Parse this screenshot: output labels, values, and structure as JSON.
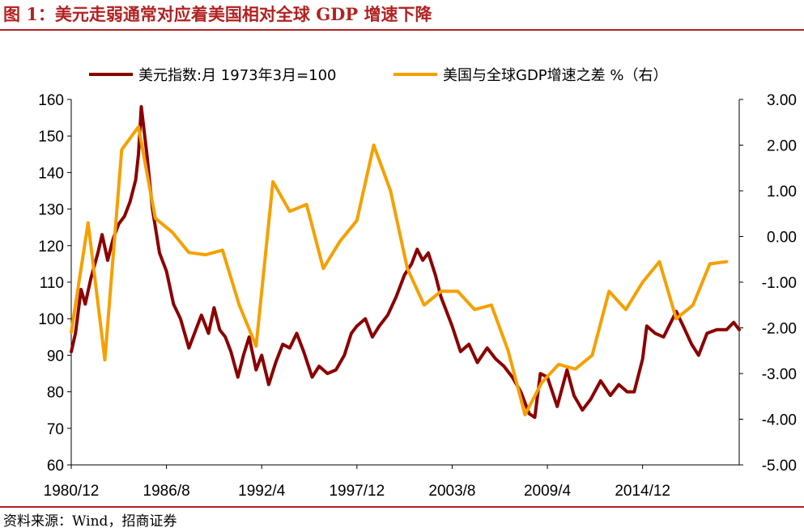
{
  "figure": {
    "title": "图 1：美元走弱通常对应着美国相对全球 GDP 增速下降",
    "source": "资料来源：Wind，招商证券"
  },
  "colors": {
    "accent": "#B22222",
    "dxy": "#8B0000",
    "gdp": "#F5A000"
  },
  "chart_data": {
    "type": "line",
    "legend_placement": "top",
    "grid": false,
    "x_tick_labels": [
      "1980/12",
      "1986/8",
      "1992/4",
      "1997/12",
      "2003/8",
      "2009/4",
      "2014/12"
    ],
    "y_left": {
      "range": [
        60,
        160
      ],
      "ticks": [
        "60",
        "70",
        "80",
        "90",
        "100",
        "110",
        "120",
        "130",
        "140",
        "150",
        "160"
      ]
    },
    "y_right": {
      "range": [
        -5,
        3
      ],
      "ticks": [
        "-5.00",
        "-4.00",
        "-3.00",
        "-2.00",
        "-1.00",
        "0.00",
        "1.00",
        "2.00",
        "3.00"
      ]
    },
    "series": [
      {
        "name": "美元指数:月 1973年3月=100",
        "axis": "left",
        "points": [
          [
            "1980/12",
            91
          ],
          [
            "1981/3",
            96
          ],
          [
            "1981/7",
            108
          ],
          [
            "1981/10",
            104
          ],
          [
            "1982/2",
            111
          ],
          [
            "1982/7",
            118
          ],
          [
            "1982/10",
            123
          ],
          [
            "1983/2",
            116
          ],
          [
            "1983/6",
            122
          ],
          [
            "1983/10",
            126
          ],
          [
            "1984/2",
            128
          ],
          [
            "1984/6",
            132
          ],
          [
            "1984/10",
            138
          ],
          [
            "1984/12",
            145
          ],
          [
            "1985/2",
            158
          ],
          [
            "1985/6",
            145
          ],
          [
            "1985/10",
            130
          ],
          [
            "1986/3",
            118
          ],
          [
            "1986/8",
            113
          ],
          [
            "1987/1",
            104
          ],
          [
            "1987/6",
            100
          ],
          [
            "1987/12",
            92
          ],
          [
            "1988/5",
            97
          ],
          [
            "1988/9",
            101
          ],
          [
            "1989/2",
            96
          ],
          [
            "1989/6",
            103
          ],
          [
            "1989/10",
            97
          ],
          [
            "1990/2",
            95
          ],
          [
            "1990/6",
            91
          ],
          [
            "1990/11",
            84
          ],
          [
            "1991/3",
            90
          ],
          [
            "1991/7",
            95
          ],
          [
            "1991/12",
            86
          ],
          [
            "1992/4",
            90
          ],
          [
            "1992/9",
            82
          ],
          [
            "1993/2",
            88
          ],
          [
            "1993/7",
            93
          ],
          [
            "1993/12",
            92
          ],
          [
            "1994/5",
            96
          ],
          [
            "1994/10",
            91
          ],
          [
            "1995/4",
            84
          ],
          [
            "1995/9",
            87
          ],
          [
            "1996/3",
            85
          ],
          [
            "1996/9",
            86
          ],
          [
            "1997/3",
            90
          ],
          [
            "1997/8",
            96
          ],
          [
            "1997/12",
            98
          ],
          [
            "1998/6",
            100
          ],
          [
            "1998/11",
            95
          ],
          [
            "1999/4",
            98
          ],
          [
            "1999/10",
            101
          ],
          [
            "2000/4",
            106
          ],
          [
            "2000/10",
            112
          ],
          [
            "2001/3",
            115
          ],
          [
            "2001/7",
            119
          ],
          [
            "2001/11",
            116
          ],
          [
            "2002/3",
            118
          ],
          [
            "2002/8",
            112
          ],
          [
            "2002/12",
            106
          ],
          [
            "2003/8",
            98
          ],
          [
            "2004/2",
            91
          ],
          [
            "2004/8",
            93
          ],
          [
            "2005/2",
            88
          ],
          [
            "2005/9",
            92
          ],
          [
            "2006/3",
            89
          ],
          [
            "2006/9",
            87
          ],
          [
            "2007/3",
            84
          ],
          [
            "2007/9",
            80
          ],
          [
            "2008/3",
            74
          ],
          [
            "2008/7",
            73
          ],
          [
            "2008/11",
            85
          ],
          [
            "2009/4",
            84
          ],
          [
            "2009/11",
            76
          ],
          [
            "2010/6",
            86
          ],
          [
            "2010/11",
            79
          ],
          [
            "2011/5",
            75
          ],
          [
            "2011/11",
            78
          ],
          [
            "2012/6",
            83
          ],
          [
            "2013/1",
            79
          ],
          [
            "2013/7",
            82
          ],
          [
            "2014/1",
            80
          ],
          [
            "2014/6",
            80
          ],
          [
            "2014/12",
            89
          ],
          [
            "2015/3",
            98
          ],
          [
            "2015/9",
            96
          ],
          [
            "2016/3",
            95
          ],
          [
            "2016/12",
            102
          ],
          [
            "2017/5",
            98
          ],
          [
            "2017/11",
            93
          ],
          [
            "2018/4",
            90
          ],
          [
            "2018/10",
            96
          ],
          [
            "2019/5",
            97
          ],
          [
            "2019/12",
            97
          ],
          [
            "2020/5",
            99
          ],
          [
            "2020/9",
            97
          ]
        ]
      },
      {
        "name": "美国与全球GDP增速之差 %（右）",
        "axis": "right",
        "points": [
          [
            "1980/12",
            -2.1
          ],
          [
            "1981/12",
            0.3
          ],
          [
            "1982/12",
            -2.7
          ],
          [
            "1983/12",
            1.9
          ],
          [
            "1984/12",
            2.4
          ],
          [
            "1985/12",
            0.4
          ],
          [
            "1986/12",
            0.1
          ],
          [
            "1987/12",
            -0.35
          ],
          [
            "1988/12",
            -0.4
          ],
          [
            "1989/12",
            -0.3
          ],
          [
            "1990/12",
            -1.5
          ],
          [
            "1991/12",
            -2.4
          ],
          [
            "1992/12",
            1.2
          ],
          [
            "1993/12",
            0.55
          ],
          [
            "1994/12",
            0.7
          ],
          [
            "1995/12",
            -0.7
          ],
          [
            "1996/12",
            -0.1
          ],
          [
            "1997/12",
            0.35
          ],
          [
            "1998/12",
            2.0
          ],
          [
            "1999/12",
            1.0
          ],
          [
            "2000/12",
            -0.7
          ],
          [
            "2001/12",
            -1.5
          ],
          [
            "2002/12",
            -1.2
          ],
          [
            "2003/12",
            -1.2
          ],
          [
            "2004/12",
            -1.6
          ],
          [
            "2005/12",
            -1.5
          ],
          [
            "2006/12",
            -2.5
          ],
          [
            "2007/12",
            -3.9
          ],
          [
            "2008/12",
            -3.2
          ],
          [
            "2009/12",
            -2.8
          ],
          [
            "2010/12",
            -2.9
          ],
          [
            "2011/12",
            -2.6
          ],
          [
            "2012/12",
            -1.2
          ],
          [
            "2013/12",
            -1.6
          ],
          [
            "2014/12",
            -1.0
          ],
          [
            "2015/12",
            -0.55
          ],
          [
            "2016/12",
            -1.8
          ],
          [
            "2017/12",
            -1.5
          ],
          [
            "2018/12",
            -0.6
          ],
          [
            "2019/12",
            -0.55
          ]
        ]
      }
    ]
  }
}
